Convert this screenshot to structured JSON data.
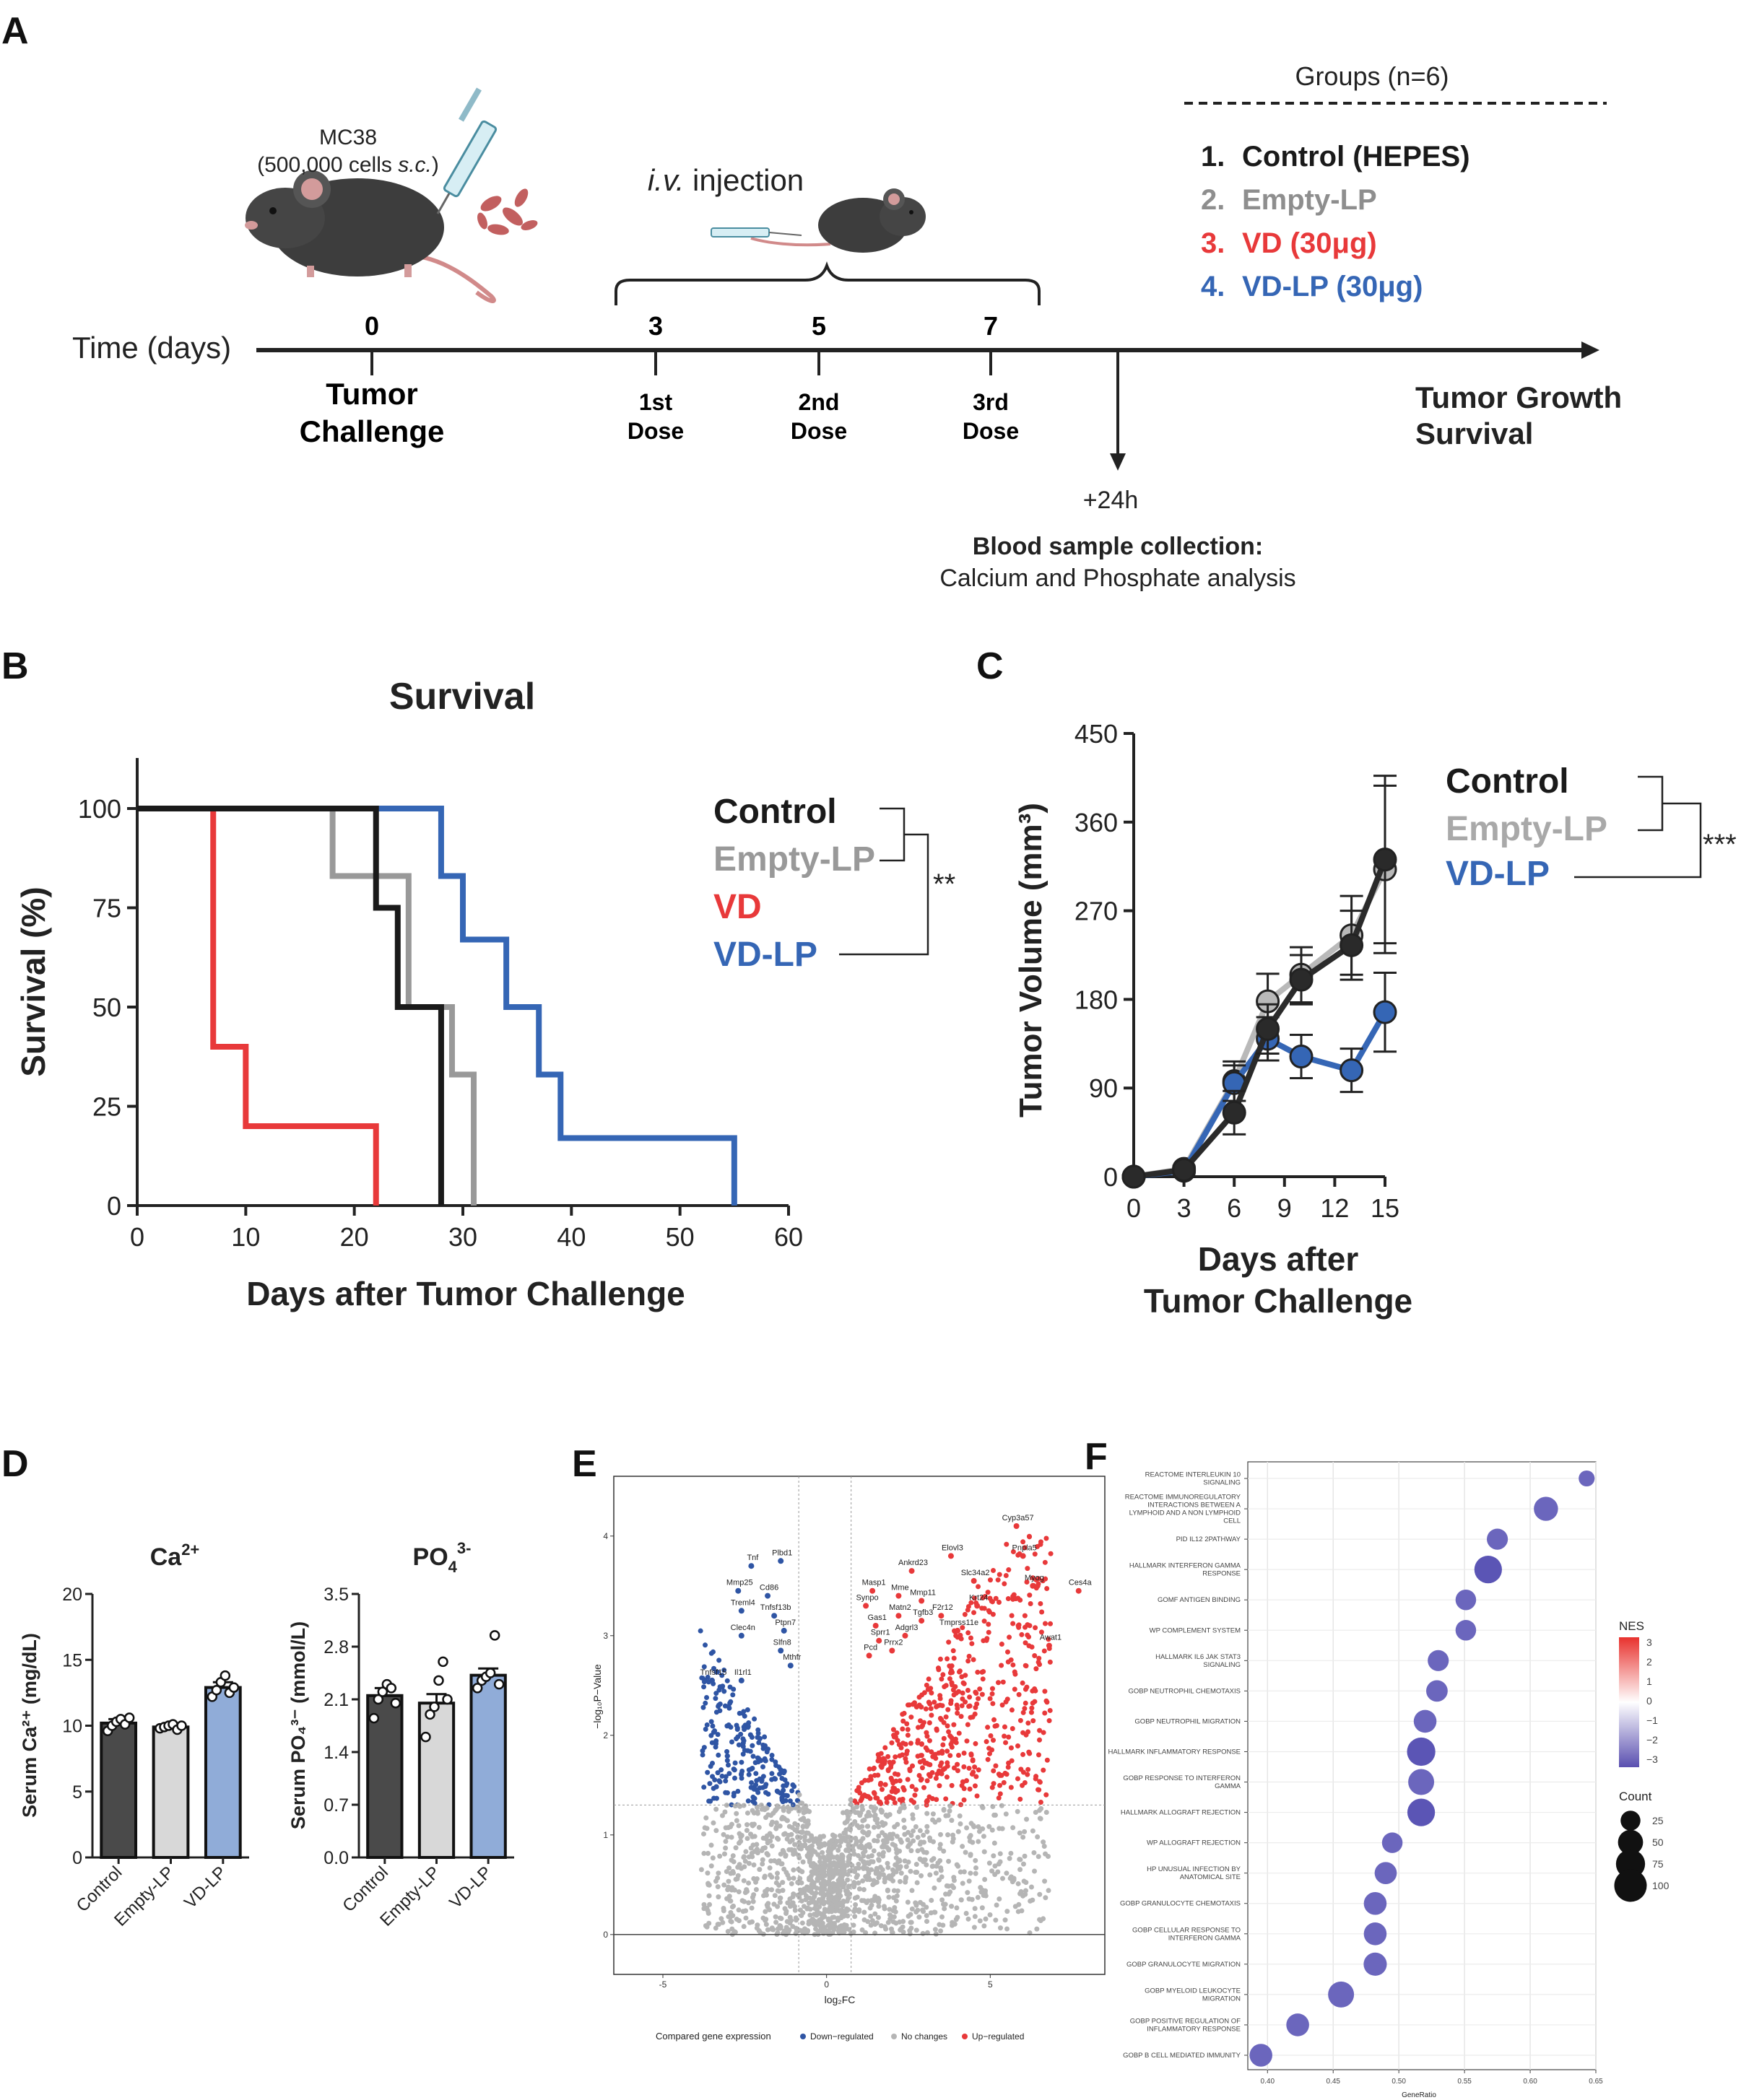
{
  "panel_labels": {
    "a": "A",
    "b": "B",
    "c": "C",
    "d": "D",
    "e": "E",
    "f": "F"
  },
  "timeline": {
    "cell_line": "MC38",
    "cell_dose_prefix": "(500,000 cells ",
    "cell_dose_route": "s.c.",
    "cell_dose_suffix": ")",
    "injection_route": "i.v.",
    "injection_word": " injection",
    "axis_label": "Time (days)",
    "days": [
      {
        "day": "0",
        "label1": "Tumor",
        "label2": "Challenge"
      },
      {
        "day": "3",
        "label1": "1st",
        "label2": "Dose"
      },
      {
        "day": "5",
        "label1": "2nd",
        "label2": "Dose"
      },
      {
        "day": "7",
        "label1": "3rd",
        "label2": "Dose"
      }
    ],
    "endpoint1": "Tumor Growth",
    "endpoint2": "Survival",
    "plus24h": "+24h",
    "blood_title": "Blood sample collection:",
    "blood_text": "Calcium and Phosphate analysis",
    "groups_title": "Groups (n=6)",
    "groups": [
      {
        "num": "1.",
        "label": "Control (HEPES)",
        "color": "#1a1a1a"
      },
      {
        "num": "2.",
        "label": "Empty-LP",
        "color": "#8e8e8e"
      },
      {
        "num": "3.",
        "label": "VD (30μg)",
        "color": "#e8393a"
      },
      {
        "num": "4.",
        "label": "VD-LP (30μg)",
        "color": "#3566b5"
      }
    ]
  },
  "chart_data": [
    {
      "panel": "B",
      "type": "line",
      "title": "Survival",
      "xlabel": "Days after Tumor Challenge",
      "ylabel": "Survival (%)",
      "xlim": [
        0,
        60
      ],
      "ylim": [
        0,
        100
      ],
      "xticks": [
        "0",
        "10",
        "20",
        "30",
        "40",
        "50",
        "60"
      ],
      "yticks": [
        "0",
        "25",
        "50",
        "75",
        "100"
      ],
      "series": [
        {
          "name": "Control",
          "color": "#1a1a1a",
          "steps": [
            [
              0,
              100
            ],
            [
              22,
              100
            ],
            [
              22,
              75
            ],
            [
              24,
              75
            ],
            [
              24,
              50
            ],
            [
              28,
              50
            ],
            [
              28,
              0
            ]
          ]
        },
        {
          "name": "Empty-LP",
          "color": "#999999",
          "steps": [
            [
              0,
              100
            ],
            [
              18,
              100
            ],
            [
              18,
              83
            ],
            [
              25,
              83
            ],
            [
              25,
              50
            ],
            [
              29,
              50
            ],
            [
              29,
              33
            ],
            [
              31,
              33
            ],
            [
              31,
              0
            ]
          ]
        },
        {
          "name": "VD",
          "color": "#e8393a",
          "steps": [
            [
              0,
              100
            ],
            [
              7,
              100
            ],
            [
              7,
              40
            ],
            [
              10,
              40
            ],
            [
              10,
              20
            ],
            [
              22,
              20
            ],
            [
              22,
              0
            ]
          ]
        },
        {
          "name": "VD-LP",
          "color": "#3566b5",
          "steps": [
            [
              0,
              100
            ],
            [
              28,
              100
            ],
            [
              28,
              83
            ],
            [
              30,
              83
            ],
            [
              30,
              67
            ],
            [
              34,
              67
            ],
            [
              34,
              50
            ],
            [
              37,
              50
            ],
            [
              37,
              33
            ],
            [
              39,
              33
            ],
            [
              39,
              17
            ],
            [
              55,
              17
            ],
            [
              55,
              0
            ]
          ]
        }
      ],
      "legend": [
        "Control",
        "Empty-LP",
        "VD",
        "VD-LP"
      ],
      "significance": "**"
    },
    {
      "panel": "C",
      "type": "line",
      "xlabel1": "Days after",
      "xlabel2": "Tumor Challenge",
      "ylabel": "Tumor Volume (mm³)",
      "xlim": [
        0,
        15
      ],
      "ylim": [
        0,
        450
      ],
      "xticks": [
        "0",
        "3",
        "6",
        "9",
        "12",
        "15"
      ],
      "yticks": [
        "0",
        "90",
        "180",
        "270",
        "360",
        "450"
      ],
      "x": [
        0,
        3,
        6,
        8,
        10,
        13,
        15
      ],
      "series": [
        {
          "name": "Empty-LP",
          "color": "#b9b9b9",
          "values": [
            0,
            8,
            97,
            178,
            205,
            245,
            312
          ],
          "errors": [
            0,
            3,
            20,
            28,
            28,
            40,
            85
          ]
        },
        {
          "name": "VD-LP",
          "color": "#3566b5",
          "values": [
            0,
            6,
            95,
            140,
            122,
            108,
            167
          ],
          "errors": [
            0,
            3,
            18,
            22,
            22,
            22,
            40
          ]
        },
        {
          "name": "Control",
          "color": "#2a2a2a",
          "values": [
            0,
            7,
            65,
            150,
            200,
            235,
            322
          ],
          "errors": [
            0,
            3,
            22,
            25,
            25,
            35,
            85
          ]
        }
      ],
      "legend": [
        "Control",
        "Empty-LP",
        "VD-LP"
      ],
      "significance": "***"
    },
    {
      "panel": "D1",
      "type": "bar",
      "title": "Ca",
      "title_sup": "2+",
      "ylabel": "Serum Ca²⁺ (mg/dL)",
      "categories": [
        "Control",
        "Empty-LP",
        "VD-LP"
      ],
      "values": [
        10.2,
        9.9,
        12.9
      ],
      "errors": [
        0.3,
        0.2,
        0.4
      ],
      "points": [
        [
          9.6,
          10.0,
          10.3,
          10.5,
          10.1,
          10.6
        ],
        [
          9.8,
          9.9,
          10.0,
          10.1,
          9.7,
          10.0
        ],
        [
          12.2,
          12.7,
          13.3,
          13.8,
          12.5,
          12.9
        ]
      ],
      "colors": [
        "#4a4a4a",
        "#d8d8d8",
        "#90acd8"
      ],
      "ylim": [
        0,
        20
      ],
      "yticks": [
        "0",
        "5",
        "10",
        "15",
        "20"
      ]
    },
    {
      "panel": "D2",
      "type": "bar",
      "title": "PO",
      "title_sub": "4",
      "title_sup": "3-",
      "ylabel": "Serum PO₄³⁻ (mmol/L)",
      "categories": [
        "Control",
        "Empty-LP",
        "VD-LP"
      ],
      "values": [
        2.15,
        2.05,
        2.42
      ],
      "errors": [
        0.1,
        0.12,
        0.09
      ],
      "points": [
        [
          1.85,
          2.1,
          2.2,
          2.3,
          2.25,
          2.05
        ],
        [
          1.6,
          1.9,
          2.0,
          2.35,
          2.6,
          2.1
        ],
        [
          2.25,
          2.35,
          2.4,
          2.45,
          2.95,
          2.3
        ]
      ],
      "colors": [
        "#4a4a4a",
        "#d8d8d8",
        "#90acd8"
      ],
      "ylim": [
        0,
        3.5
      ],
      "yticks": [
        "0.0",
        "0.7",
        "1.4",
        "2.1",
        "2.8",
        "3.5"
      ]
    },
    {
      "panel": "E",
      "type": "scatter",
      "xlabel": "log₂FC",
      "ylabel": "−log₁₀P−Value",
      "xlim": [
        -6.5,
        8.5
      ],
      "ylim": [
        -0.4,
        4.6
      ],
      "xticks": [
        "-5",
        "0",
        "5"
      ],
      "yticks": [
        "0",
        "1",
        "2",
        "3",
        "4"
      ],
      "legend_title": "Compared gene expression",
      "legend": [
        {
          "label": "Down−regulated",
          "color": "#2f55a4"
        },
        {
          "label": "No changes",
          "color": "#b5b5b5"
        },
        {
          "label": "Up−regulated",
          "color": "#e8393a"
        }
      ],
      "labeled_genes": [
        {
          "gene": "Cyp3a57",
          "x": 5.8,
          "y": 4.1,
          "dir": "up"
        },
        {
          "gene": "Elovl3",
          "x": 3.8,
          "y": 3.8,
          "dir": "up"
        },
        {
          "gene": "Pnpla5",
          "x": 6.0,
          "y": 3.8,
          "dir": "up"
        },
        {
          "gene": "Ankrd23",
          "x": 2.6,
          "y": 3.65,
          "dir": "up"
        },
        {
          "gene": "Slc34a2",
          "x": 4.5,
          "y": 3.55,
          "dir": "up"
        },
        {
          "gene": "Myog",
          "x": 6.3,
          "y": 3.5,
          "dir": "up"
        },
        {
          "gene": "Ces4a",
          "x": 7.7,
          "y": 3.45,
          "dir": "up"
        },
        {
          "gene": "Masp1",
          "x": 1.4,
          "y": 3.45,
          "dir": "up"
        },
        {
          "gene": "Mme",
          "x": 2.2,
          "y": 3.4,
          "dir": "up"
        },
        {
          "gene": "Mmp11",
          "x": 2.9,
          "y": 3.35,
          "dir": "up"
        },
        {
          "gene": "Krt24",
          "x": 4.6,
          "y": 3.3,
          "dir": "up"
        },
        {
          "gene": "Synpo",
          "x": 1.2,
          "y": 3.3,
          "dir": "up"
        },
        {
          "gene": "Matn2",
          "x": 2.2,
          "y": 3.2,
          "dir": "up"
        },
        {
          "gene": "F2r12",
          "x": 3.5,
          "y": 3.2,
          "dir": "up"
        },
        {
          "gene": "Tgfb3",
          "x": 2.9,
          "y": 3.15,
          "dir": "up"
        },
        {
          "gene": "Gas1",
          "x": 1.5,
          "y": 3.1,
          "dir": "up"
        },
        {
          "gene": "Tmprss11e",
          "x": 4.0,
          "y": 3.05,
          "dir": "up"
        },
        {
          "gene": "Adgrl3",
          "x": 2.4,
          "y": 3.0,
          "dir": "up"
        },
        {
          "gene": "Sprr1",
          "x": 1.6,
          "y": 2.95,
          "dir": "up"
        },
        {
          "gene": "Awat1",
          "x": 6.8,
          "y": 2.9,
          "dir": "up"
        },
        {
          "gene": "Prrx2",
          "x": 2.0,
          "y": 2.85,
          "dir": "up"
        },
        {
          "gene": "Pcd",
          "x": 1.3,
          "y": 2.8,
          "dir": "up"
        },
        {
          "gene": "Plbd1",
          "x": -1.4,
          "y": 3.75,
          "dir": "down"
        },
        {
          "gene": "Tnf",
          "x": -2.3,
          "y": 3.7,
          "dir": "down"
        },
        {
          "gene": "Mmp25",
          "x": -2.7,
          "y": 3.45,
          "dir": "down"
        },
        {
          "gene": "Cd86",
          "x": -1.8,
          "y": 3.4,
          "dir": "down"
        },
        {
          "gene": "Treml4",
          "x": -2.6,
          "y": 3.25,
          "dir": "down"
        },
        {
          "gene": "Tnfsf13b",
          "x": -1.6,
          "y": 3.2,
          "dir": "down"
        },
        {
          "gene": "Ptpn7",
          "x": -1.3,
          "y": 3.05,
          "dir": "down"
        },
        {
          "gene": "Clec4n",
          "x": -2.6,
          "y": 3.0,
          "dir": "down"
        },
        {
          "gene": "Slfn8",
          "x": -1.4,
          "y": 2.85,
          "dir": "down"
        },
        {
          "gene": "Tnfsf15",
          "x": -3.5,
          "y": 2.55,
          "dir": "down"
        },
        {
          "gene": "Il1rl1",
          "x": -2.6,
          "y": 2.55,
          "dir": "down"
        },
        {
          "gene": "Mthfr",
          "x": -1.1,
          "y": 2.7,
          "dir": "down"
        }
      ]
    },
    {
      "panel": "F",
      "type": "scatter",
      "xlabel": "GeneRatio",
      "xlim": [
        0.385,
        0.65
      ],
      "xticks": [
        "0.40",
        "0.45",
        "0.50",
        "0.55",
        "0.60",
        "0.65"
      ],
      "terms": [
        {
          "term": [
            "REACTOME INTERLEUKIN 10",
            "SIGNALING"
          ],
          "ratio": 0.643,
          "count": 12,
          "nes": -2.7
        },
        {
          "term": [
            "REACTOME IMMUNOREGULATORY",
            "INTERACTIONS BETWEEN A",
            "LYMPHOID AND A NON LYMPHOID",
            "CELL"
          ],
          "ratio": 0.612,
          "count": 45,
          "nes": -2.6
        },
        {
          "term": [
            "PID IL12 2PATHWAY"
          ],
          "ratio": 0.575,
          "count": 30,
          "nes": -2.7
        },
        {
          "term": [
            "HALLMARK INTERFERON GAMMA",
            "RESPONSE"
          ],
          "ratio": 0.568,
          "count": 65,
          "nes": -2.8
        },
        {
          "term": [
            "GOMF ANTIGEN BINDING"
          ],
          "ratio": 0.551,
          "count": 28,
          "nes": -2.7
        },
        {
          "term": [
            "WP COMPLEMENT SYSTEM"
          ],
          "ratio": 0.551,
          "count": 28,
          "nes": -2.7
        },
        {
          "term": [
            "HALLMARK IL6 JAK STAT3",
            "SIGNALING"
          ],
          "ratio": 0.53,
          "count": 30,
          "nes": -2.7
        },
        {
          "term": [
            "GOBP NEUTROPHIL CHEMOTAXIS"
          ],
          "ratio": 0.529,
          "count": 32,
          "nes": -2.7
        },
        {
          "term": [
            "GOBP NEUTROPHIL MIGRATION"
          ],
          "ratio": 0.52,
          "count": 38,
          "nes": -2.7
        },
        {
          "term": [
            "HALLMARK INFLAMMATORY RESPONSE"
          ],
          "ratio": 0.517,
          "count": 70,
          "nes": -2.8
        },
        {
          "term": [
            "GOBP RESPONSE TO INTERFERON",
            "GAMMA"
          ],
          "ratio": 0.517,
          "count": 55,
          "nes": -2.7
        },
        {
          "term": [
            "HALLMARK ALLOGRAFT REJECTION"
          ],
          "ratio": 0.517,
          "count": 65,
          "nes": -2.8
        },
        {
          "term": [
            "WP ALLOGRAFT REJECTION"
          ],
          "ratio": 0.495,
          "count": 28,
          "nes": -2.7
        },
        {
          "term": [
            "HP UNUSUAL INFECTION BY",
            "ANATOMICAL SITE"
          ],
          "ratio": 0.49,
          "count": 35,
          "nes": -2.7
        },
        {
          "term": [
            "GOBP GRANULOCYTE CHEMOTAXIS"
          ],
          "ratio": 0.482,
          "count": 38,
          "nes": -2.7
        },
        {
          "term": [
            "GOBP CELLULAR RESPONSE TO",
            "INTERFERON GAMMA"
          ],
          "ratio": 0.482,
          "count": 38,
          "nes": -2.7
        },
        {
          "term": [
            "GOBP GRANULOCYTE MIGRATION"
          ],
          "ratio": 0.482,
          "count": 40,
          "nes": -2.7
        },
        {
          "term": [
            "GOBP MYELOID LEUKOCYTE",
            "MIGRATION"
          ],
          "ratio": 0.456,
          "count": 55,
          "nes": -2.7
        },
        {
          "term": [
            "GOBP POSITIVE REGULATION OF",
            "INFLAMMATORY RESPONSE"
          ],
          "ratio": 0.423,
          "count": 38,
          "nes": -2.7
        },
        {
          "term": [
            "GOBP B CELL MEDIATED IMMUNITY"
          ],
          "ratio": 0.395,
          "count": 38,
          "nes": -2.7
        }
      ],
      "nes_legend": {
        "title": "NES",
        "ticks": [
          "3",
          "2",
          "1",
          "0",
          "−1",
          "−2",
          "−3"
        ]
      },
      "count_legend": {
        "title": "Count",
        "values": [
          "25",
          "50",
          "75",
          "100"
        ]
      }
    }
  ]
}
